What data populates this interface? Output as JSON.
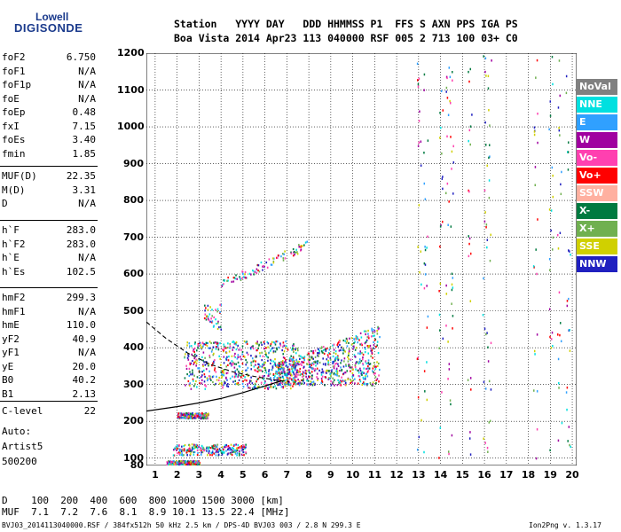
{
  "logo": {
    "line1": "Lowell",
    "line2": "DIGISONDE"
  },
  "header": {
    "row1": "Station   YYYY DAY   DDD HHMMSS P1  FFS S AXN PPS IGA PS",
    "row2": "Boa Vista 2014 Apr23 113 040000 RSF 005 2 713 100 03+ C0"
  },
  "params": {
    "group1": [
      {
        "name": "foF2",
        "value": "6.750"
      },
      {
        "name": "foF1",
        "value": "N/A"
      },
      {
        "name": "foF1p",
        "value": "N/A"
      },
      {
        "name": "foE",
        "value": "N/A"
      },
      {
        "name": "foEp",
        "value": "0.48"
      },
      {
        "name": "fxI",
        "value": "7.15"
      },
      {
        "name": "foEs",
        "value": "3.40"
      },
      {
        "name": "fmin",
        "value": "1.85"
      }
    ],
    "group2": [
      {
        "name": "MUF(D)",
        "value": "22.35"
      },
      {
        "name": "M(D)",
        "value": "3.31"
      },
      {
        "name": "D",
        "value": "N/A"
      }
    ],
    "group3": [
      {
        "name": "h`F",
        "value": "283.0"
      },
      {
        "name": "h`F2",
        "value": "283.0"
      },
      {
        "name": "h`E",
        "value": "N/A"
      },
      {
        "name": "h`Es",
        "value": "102.5"
      }
    ],
    "group4": [
      {
        "name": "hmF2",
        "value": "299.3"
      },
      {
        "name": "hmF1",
        "value": "N/A"
      },
      {
        "name": "hmE",
        "value": "110.0"
      },
      {
        "name": "yF2",
        "value": "40.9"
      },
      {
        "name": "yF1",
        "value": "N/A"
      },
      {
        "name": "yE",
        "value": "20.0"
      },
      {
        "name": "B0",
        "value": "40.2"
      },
      {
        "name": "B1",
        "value": "2.13"
      }
    ],
    "group5": [
      {
        "name": "C-level",
        "value": "22"
      }
    ]
  },
  "scaling": {
    "line1": "Auto:",
    "line2": "Artist5",
    "line3": "500200"
  },
  "legend": [
    {
      "label": "NoVal",
      "color": "#808080"
    },
    {
      "label": "NNE",
      "color": "#00e0e0"
    },
    {
      "label": "E",
      "color": "#30a0ff"
    },
    {
      "label": "W",
      "color": "#a000a0"
    },
    {
      "label": "Vo-",
      "color": "#ff40b0"
    },
    {
      "label": "Vo+",
      "color": "#ff0000"
    },
    {
      "label": "SSW",
      "color": "#ffb0a0"
    },
    {
      "label": "X-",
      "color": "#007a40"
    },
    {
      "label": "X+",
      "color": "#70b050"
    },
    {
      "label": "SSE",
      "color": "#d0d000"
    },
    {
      "label": "NNW",
      "color": "#2020c0"
    }
  ],
  "footer": {
    "d_row": "D    100  200  400  600  800 1000 1500 3000 [km]",
    "muf_row": "MUF  7.1  7.2  7.6  8.1  8.9 10.1 13.5 22.4 [MHz]",
    "file_info": "BVJ03_2014113040000.RSF / 384fx512h 50 kHz 2.5 km / DPS-4D BVJ03 003 / 2.8 N 299.3 E",
    "version": "Ion2Png v. 1.3.17"
  },
  "chart_data": {
    "type": "scatter",
    "title": "",
    "xlabel": "",
    "ylabel": "",
    "xlim": [
      0.6,
      20.2
    ],
    "ylim": [
      80,
      1200
    ],
    "x_ticks": [
      1,
      2,
      3,
      4,
      5,
      6,
      7,
      8,
      9,
      10,
      11,
      12,
      13,
      14,
      15,
      16,
      17,
      18,
      19,
      20
    ],
    "y_ticks": [
      80,
      100,
      200,
      300,
      400,
      500,
      600,
      700,
      800,
      900,
      1000,
      1100,
      1200
    ],
    "grid": true,
    "legend_position": "right",
    "clusters": [
      {
        "name": "E-sporadic",
        "x_range": [
          2.0,
          3.4
        ],
        "y_range": [
          210,
          225
        ]
      },
      {
        "name": "Es-lower",
        "x_range": [
          1.8,
          5.2
        ],
        "y_range": [
          110,
          140
        ]
      },
      {
        "name": "E-low",
        "x_range": [
          1.5,
          3.0
        ],
        "y_range": [
          82,
          95
        ]
      },
      {
        "name": "F-trace",
        "x_range": [
          2.3,
          7.5
        ],
        "y_range": [
          290,
          420
        ]
      },
      {
        "name": "F-spread",
        "x_range": [
          6.5,
          11.2
        ],
        "y_range": [
          300,
          460
        ]
      },
      {
        "name": "F-second-hop",
        "x_range": [
          4.0,
          8.0
        ],
        "y_range": [
          560,
          680
        ]
      },
      {
        "name": "Es-mid",
        "x_range": [
          3.2,
          4.0
        ],
        "y_range": [
          450,
          520
        ]
      }
    ],
    "profile_curve": {
      "solid": [
        [
          0.6,
          228
        ],
        [
          2,
          240
        ],
        [
          3,
          250
        ],
        [
          4,
          262
        ],
        [
          5,
          278
        ],
        [
          6,
          296
        ],
        [
          6.75,
          310
        ]
      ],
      "dashed": [
        [
          0.6,
          470
        ],
        [
          1.5,
          425
        ],
        [
          2.5,
          385
        ],
        [
          3.5,
          355
        ],
        [
          4.5,
          335
        ],
        [
          5.5,
          322
        ],
        [
          6.5,
          312
        ],
        [
          7.1,
          308
        ]
      ]
    }
  }
}
